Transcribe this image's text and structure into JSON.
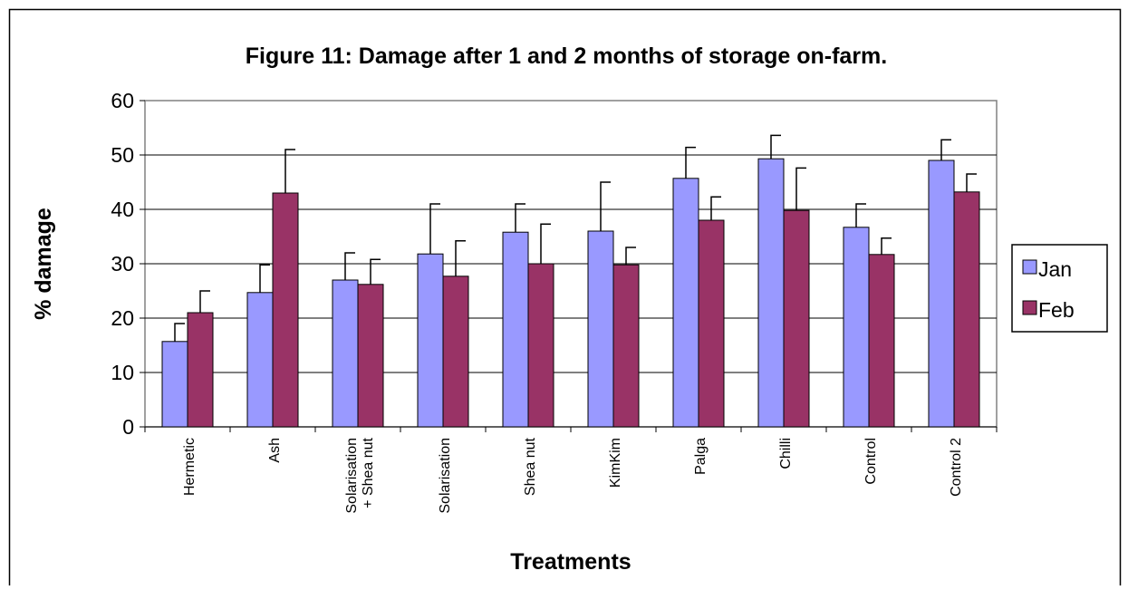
{
  "chart_data": {
    "type": "bar",
    "title": "Figure 11: Damage after 1 and 2 months of storage on-farm.",
    "xlabel": "Treatments",
    "ylabel": "% damage",
    "categories": [
      "Hermetic",
      "Ash",
      "Solarisation\n+ Shea nut",
      "Solarisation",
      "Shea nut",
      "KimKim",
      "Palga",
      "Chilli",
      "Control",
      "Control 2"
    ],
    "series": [
      {
        "name": "Jan",
        "color": "#9999ff",
        "values": [
          15.7,
          24.7,
          27,
          31.8,
          35.8,
          36,
          45.7,
          49.3,
          36.7,
          49
        ],
        "errors": [
          3.3,
          5.1,
          5,
          9.2,
          5.2,
          9,
          5.7,
          4.3,
          4.3,
          3.8
        ]
      },
      {
        "name": "Feb",
        "color": "#993366",
        "values": [
          21,
          43,
          26.2,
          27.7,
          30,
          29.8,
          38,
          39.8,
          31.7,
          43.2
        ],
        "errors": [
          4,
          8,
          4.6,
          6.5,
          7.3,
          3.2,
          4.3,
          7.8,
          3,
          3.3
        ]
      }
    ],
    "ylim": [
      0,
      60
    ],
    "yticks": [
      0,
      10,
      20,
      30,
      40,
      50,
      60
    ],
    "grid": true,
    "legend": "right"
  }
}
